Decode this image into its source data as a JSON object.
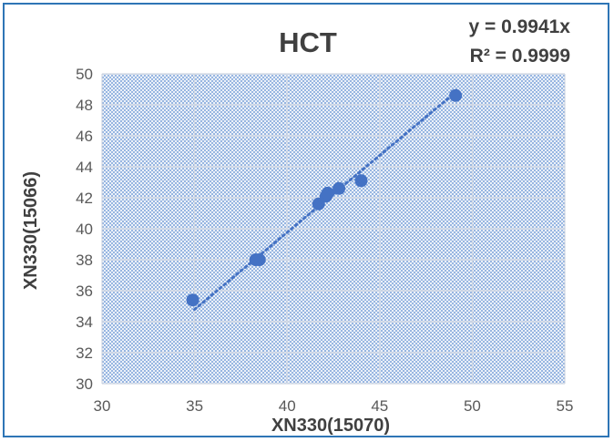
{
  "chart_data": {
    "type": "scatter",
    "title": "HCT",
    "xlabel": "XN330(15070)",
    "ylabel": "XN330(15066)",
    "xlim": [
      30,
      55
    ],
    "ylim": [
      30,
      50
    ],
    "xticks": [
      30,
      35,
      40,
      45,
      50,
      55
    ],
    "yticks": [
      30,
      32,
      34,
      36,
      38,
      40,
      42,
      44,
      46,
      48,
      50
    ],
    "grid": true,
    "series": [
      {
        "x": [
          34.9,
          38.3,
          38.5,
          41.7,
          42.1,
          42.2,
          42.8,
          44.0,
          49.1
        ],
        "y": [
          35.4,
          38.0,
          38.0,
          41.6,
          42.1,
          42.3,
          42.6,
          43.1,
          48.6
        ]
      }
    ],
    "trendline": {
      "type": "linear",
      "equation": "y = 0.9941x",
      "r_squared": "R² = 0.9999",
      "x_range": [
        35,
        49.1
      ]
    },
    "colors": {
      "marker": "#4472c4",
      "trendline": "#4472c4",
      "plot_background": "#e6eef8",
      "grid": "#d0d7e2",
      "frame": "#2e75b6"
    }
  }
}
